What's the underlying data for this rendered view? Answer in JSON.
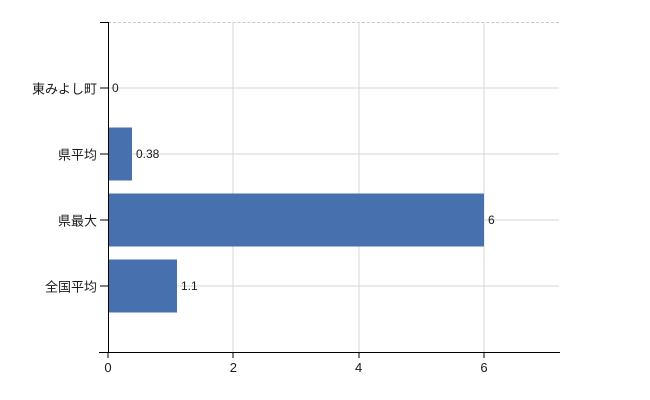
{
  "chart_data": {
    "type": "bar",
    "orientation": "horizontal",
    "categories": [
      "東みよし町",
      "県平均",
      "県最大",
      "全国平均"
    ],
    "values": [
      0,
      0.38,
      6,
      1.1
    ],
    "value_labels": [
      "0",
      "0.38",
      "6",
      "1.1"
    ],
    "x_ticks": [
      0,
      2,
      4,
      6
    ],
    "x_tick_labels": [
      "0",
      "2",
      "4",
      "6"
    ],
    "xlim": [
      0,
      7.2
    ],
    "grid": "on",
    "legend": "none",
    "colors": {
      "bar": "#3d6cb3",
      "axis": "#000000",
      "gridline_horizontal": "#cfd8cf",
      "gridline_vertical": "#d8d5da",
      "plot_border_top": "#c9c5cd",
      "label_text": "#1a1a1a"
    }
  }
}
